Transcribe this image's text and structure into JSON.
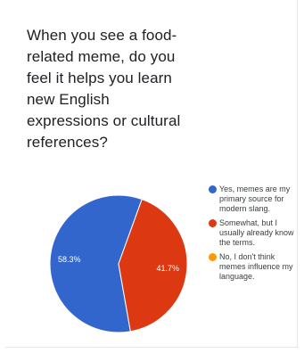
{
  "question": "When you see a food-related meme, do you feel it helps you learn new English expressions or cultural references?",
  "chart_data": {
    "type": "pie",
    "labels": [
      "Yes, memes are my primary source for modern slang.",
      "Somewhat, but I usually already know the terms.",
      "No, I don't think memes influence my language."
    ],
    "values": [
      58.3,
      41.7,
      0
    ],
    "value_labels": [
      "58.3%",
      "41.7%",
      ""
    ],
    "colors": [
      "#3366cc",
      "#dc3912",
      "#ff9900"
    ],
    "legend_position": "right"
  }
}
